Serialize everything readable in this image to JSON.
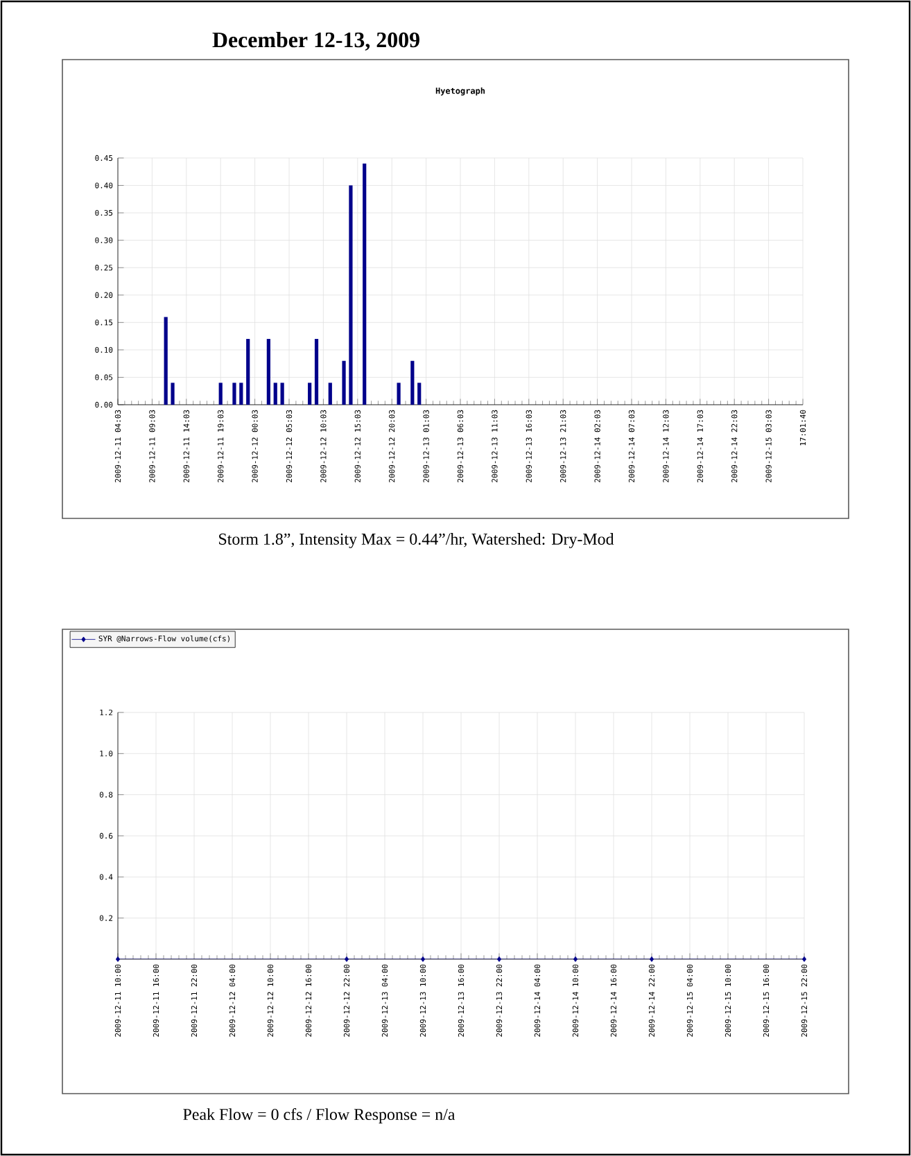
{
  "chart_data": [
    {
      "type": "bar",
      "title": "December 12-13, 2009",
      "subtitle": "Hyetograph",
      "annotations": [
        "Storm 1.8”, Intensity Max = 0.44”/hr, Watershed: Dry-Mod"
      ],
      "color": "#00008b",
      "x": [
        "2009-12-11T11:03",
        "2009-12-11T12:03",
        "2009-12-11T19:03",
        "2009-12-11T21:03",
        "2009-12-11T22:03",
        "2009-12-11T23:03",
        "2009-12-12T02:03",
        "2009-12-12T03:03",
        "2009-12-12T04:03",
        "2009-12-12T08:03",
        "2009-12-12T09:03",
        "2009-12-12T11:03",
        "2009-12-12T13:03",
        "2009-12-12T14:03",
        "2009-12-12T16:03",
        "2009-12-12T21:03",
        "2009-12-12T23:03",
        "2009-12-13T00:03"
      ],
      "values": [
        0.16,
        0.04,
        0.04,
        0.04,
        0.04,
        0.12,
        0.12,
        0.04,
        0.04,
        0.04,
        0.12,
        0.04,
        0.08,
        0.4,
        0.44,
        0.04,
        0.08,
        0.04
      ],
      "xlim": [
        "2009-12-11T04:03",
        "2009-12-15T08:03"
      ],
      "xticks": [
        {
          "value": "2009-12-11T04:03",
          "label": "2009-12-11 04:03"
        },
        {
          "value": "2009-12-11T09:03",
          "label": "2009-12-11 09:03"
        },
        {
          "value": "2009-12-11T14:03",
          "label": "2009-12-11 14:03"
        },
        {
          "value": "2009-12-11T19:03",
          "label": "2009-12-11 19:03"
        },
        {
          "value": "2009-12-12T00:03",
          "label": "2009-12-12 00:03"
        },
        {
          "value": "2009-12-12T05:03",
          "label": "2009-12-12 05:03"
        },
        {
          "value": "2009-12-12T10:03",
          "label": "2009-12-12 10:03"
        },
        {
          "value": "2009-12-12T15:03",
          "label": "2009-12-12 15:03"
        },
        {
          "value": "2009-12-12T20:03",
          "label": "2009-12-12 20:03"
        },
        {
          "value": "2009-12-13T01:03",
          "label": "2009-12-13 01:03"
        },
        {
          "value": "2009-12-13T06:03",
          "label": "2009-12-13 06:03"
        },
        {
          "value": "2009-12-13T11:03",
          "label": "2009-12-13 11:03"
        },
        {
          "value": "2009-12-13T16:03",
          "label": "2009-12-13 16:03"
        },
        {
          "value": "2009-12-13T21:03",
          "label": "2009-12-13 21:03"
        },
        {
          "value": "2009-12-14T02:03",
          "label": "2009-12-14 02:03"
        },
        {
          "value": "2009-12-14T07:03",
          "label": "2009-12-14 07:03"
        },
        {
          "value": "2009-12-14T12:03",
          "label": "2009-12-14 12:03"
        },
        {
          "value": "2009-12-14T17:03",
          "label": "2009-12-14 17:03"
        },
        {
          "value": "2009-12-14T22:03",
          "label": "2009-12-14 22:03"
        },
        {
          "value": "2009-12-15T03:03",
          "label": "2009-12-15 03:03"
        },
        {
          "value": "2009-12-15T08:03",
          "label": "17:01:40"
        }
      ],
      "ylim": [
        0,
        0.45
      ],
      "yticks": [
        {
          "value": 0,
          "label": "0.00"
        },
        {
          "value": 0.05,
          "label": "0.05"
        },
        {
          "value": 0.1,
          "label": "0.10"
        },
        {
          "value": 0.15,
          "label": "0.15"
        },
        {
          "value": 0.2,
          "label": "0.20"
        },
        {
          "value": 0.25,
          "label": "0.25"
        },
        {
          "value": 0.3,
          "label": "0.30"
        },
        {
          "value": 0.35,
          "label": "0.35"
        },
        {
          "value": 0.4,
          "label": "0.40"
        },
        {
          "value": 0.45,
          "label": "0.45"
        }
      ],
      "grid": true
    },
    {
      "type": "line",
      "annotations": [
        "Peak Flow = 0 cfs    /   Flow Response = n/a"
      ],
      "marker": "diamond",
      "legend": "top left",
      "grid": true,
      "x": [
        "2009-12-11T10:00",
        "2009-12-12T22:00",
        "2009-12-13T10:00",
        "2009-12-13T22:00",
        "2009-12-14T10:00",
        "2009-12-14T22:00",
        "2009-12-15T22:00"
      ],
      "series": [
        {
          "name": "SYR @Narrows-Flow volume(cfs)",
          "color": "#00008b",
          "values": [
            0,
            0,
            0,
            0,
            0,
            0,
            0
          ]
        }
      ],
      "xlim": [
        "2009-12-11T10:00",
        "2009-12-15T22:00"
      ],
      "xticks": [
        {
          "value": "2009-12-11T10:00",
          "label": "2009-12-11 10:00"
        },
        {
          "value": "2009-12-11T16:00",
          "label": "2009-12-11 16:00"
        },
        {
          "value": "2009-12-11T22:00",
          "label": "2009-12-11 22:00"
        },
        {
          "value": "2009-12-12T04:00",
          "label": "2009-12-12 04:00"
        },
        {
          "value": "2009-12-12T10:00",
          "label": "2009-12-12 10:00"
        },
        {
          "value": "2009-12-12T16:00",
          "label": "2009-12-12 16:00"
        },
        {
          "value": "2009-12-12T22:00",
          "label": "2009-12-12 22:00"
        },
        {
          "value": "2009-12-13T04:00",
          "label": "2009-12-13 04:00"
        },
        {
          "value": "2009-12-13T10:00",
          "label": "2009-12-13 10:00"
        },
        {
          "value": "2009-12-13T16:00",
          "label": "2009-12-13 16:00"
        },
        {
          "value": "2009-12-13T22:00",
          "label": "2009-12-13 22:00"
        },
        {
          "value": "2009-12-14T04:00",
          "label": "2009-12-14 04:00"
        },
        {
          "value": "2009-12-14T10:00",
          "label": "2009-12-14 10:00"
        },
        {
          "value": "2009-12-14T16:00",
          "label": "2009-12-14 16:00"
        },
        {
          "value": "2009-12-14T22:00",
          "label": "2009-12-14 22:00"
        },
        {
          "value": "2009-12-15T04:00",
          "label": "2009-12-15 04:00"
        },
        {
          "value": "2009-12-15T10:00",
          "label": "2009-12-15 10:00"
        },
        {
          "value": "2009-12-15T16:00",
          "label": "2009-12-15 16:00"
        },
        {
          "value": "2009-12-15T22:00",
          "label": "2009-12-15 22:00"
        }
      ],
      "ylim": [
        0,
        1.2
      ],
      "yticks": [
        {
          "value": 0.2,
          "label": "0.2"
        },
        {
          "value": 0.4,
          "label": "0.4"
        },
        {
          "value": 0.6,
          "label": "0.6"
        },
        {
          "value": 0.8,
          "label": "0.8"
        },
        {
          "value": 1.0,
          "label": "1.0"
        },
        {
          "value": 1.2,
          "label": "1.2"
        }
      ]
    }
  ]
}
